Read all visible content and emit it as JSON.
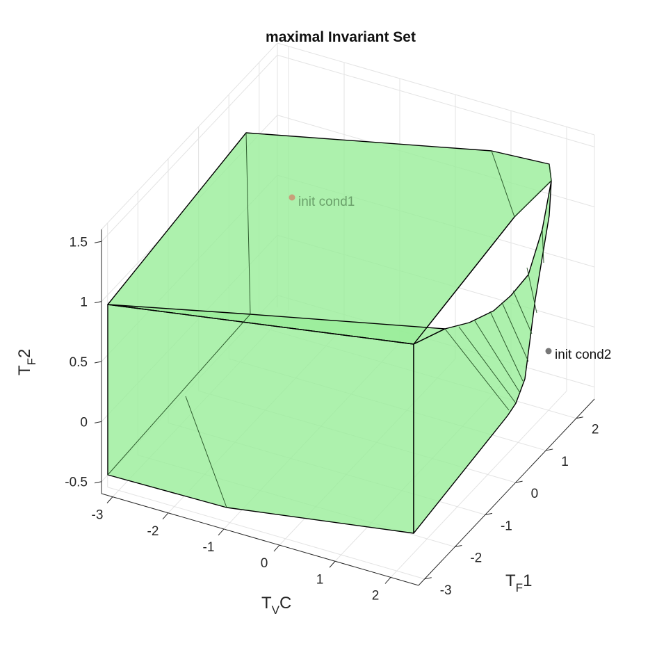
{
  "chart_data": {
    "type": "surface3d",
    "title": "maximal Invariant Set",
    "xlabel": {
      "main": "T",
      "sub": "V",
      "tail": "C"
    },
    "ylabel": {
      "main": "T",
      "sub": "F",
      "tail": "1"
    },
    "zlabel": {
      "main": "T",
      "sub": "F",
      "tail": "2"
    },
    "xlim": [
      -3.2,
      2.5
    ],
    "ylim": [
      -3.2,
      2.6
    ],
    "zlim": [
      -0.6,
      1.6
    ],
    "x_ticks": [
      "-3",
      "-2",
      "-1",
      "0",
      "1",
      "2"
    ],
    "y_ticks": [
      "-3",
      "-2",
      "-1",
      "0",
      "1",
      "2"
    ],
    "z_ticks": [
      "-0.5",
      "0",
      "0.5",
      "1",
      "1.5"
    ],
    "grid": true,
    "fill_color": "#98ee98",
    "edge_color": "#000000",
    "points": [
      {
        "label": "init cond1",
        "color": "#c8a07a",
        "label_color": "#6aa06a",
        "x": -1.2,
        "y": 2.0,
        "z": 1.3
      },
      {
        "label": "init cond2",
        "color": "#777777",
        "label_color": "#111111",
        "x": 2.4,
        "y": 0.5,
        "z": 0.55
      }
    ]
  }
}
